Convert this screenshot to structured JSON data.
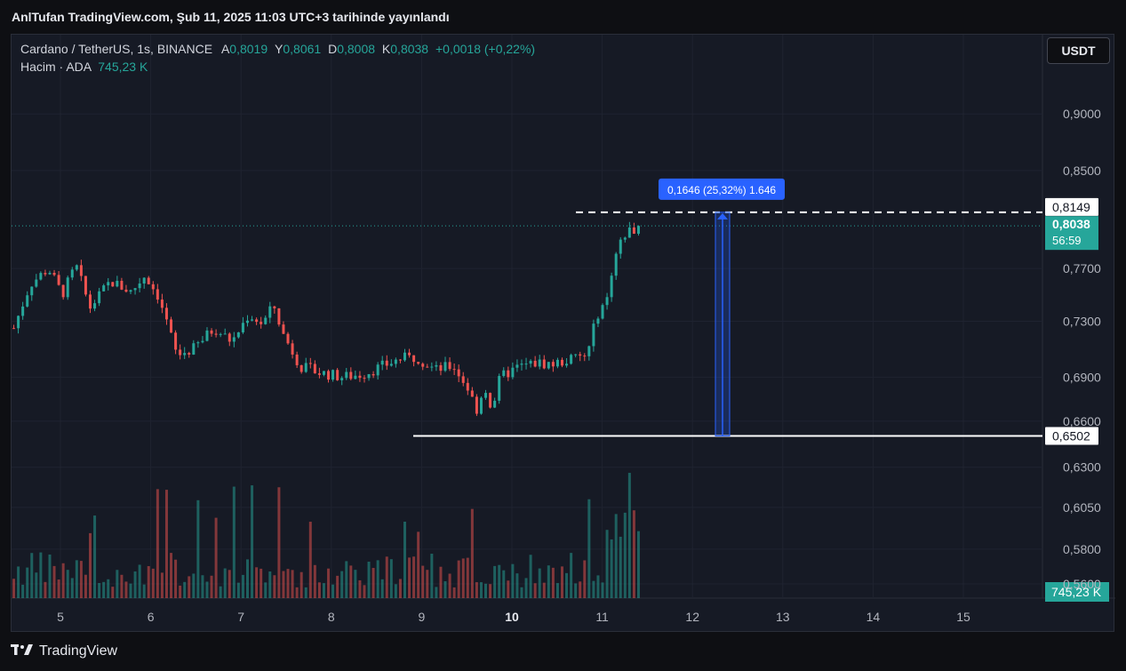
{
  "header": {
    "published": "AnlTufan TradingView.com, Şub 11, 2025 11:03 UTC+3 tarihinde yayınlandı"
  },
  "legend": {
    "symbol": "Cardano / TetherUS, 1s, BINANCE",
    "open_label": "A",
    "open": "0,8019",
    "high_label": "Y",
    "high": "0,8061",
    "low_label": "D",
    "low": "0,8008",
    "close_label": "K",
    "close": "0,8038",
    "change": "+0,0018 (+0,22%)",
    "volume_label": "Hacim · ADA",
    "volume": "745,23 K"
  },
  "currency_button": "USDT",
  "footer": {
    "logo_icon": "tradingview-logo-icon",
    "brand": "TradingView"
  },
  "colors": {
    "up": "#26a69a",
    "down": "#ef5350",
    "measure": "#2962ff",
    "background": "#161a25"
  },
  "chart_data": {
    "type": "candlestick",
    "x_tick_labels": [
      "5",
      "6",
      "7",
      "8",
      "9",
      "10",
      "11",
      "12",
      "13",
      "14",
      "15"
    ],
    "y_tick_labels": [
      "0,9000",
      "0,8500",
      "0,7700",
      "0,7300",
      "0,6900",
      "0,6600",
      "0,6300",
      "0,6050",
      "0,5800",
      "0,5600"
    ],
    "y_ticks": [
      0.9,
      0.85,
      0.77,
      0.73,
      0.69,
      0.66,
      0.63,
      0.605,
      0.58,
      0.56
    ],
    "y_scale": "log",
    "ylim": [
      0.552,
      0.975
    ],
    "price_range": [
      0.775,
      0.692,
      0.75,
      0.71,
      0.745,
      0.7,
      0.79,
      0.732,
      0.762,
      0.71,
      0.715,
      0.7,
      0.69,
      0.685,
      0.7,
      0.7,
      0.705,
      0.697,
      0.68,
      0.702,
      0.695,
      0.66,
      0.7,
      0.702,
      0.7,
      0.748,
      0.775,
      0.8038
    ],
    "current_price": {
      "label": "0,8038",
      "value": 0.8038,
      "countdown": "56:59"
    },
    "high_line": {
      "label": "0,8149",
      "value": 0.8149
    },
    "low_line": {
      "label": "0,6502",
      "value": 0.6502
    },
    "measure": {
      "label": "0,1646 (25,32%) 1.646",
      "from": 0.6502,
      "to": 0.8149
    },
    "volume_label": "745,23 K",
    "grid": true,
    "legend": "top-left"
  }
}
